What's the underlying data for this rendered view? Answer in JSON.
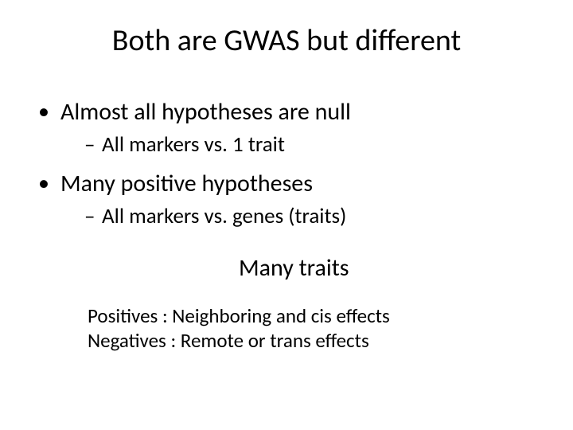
{
  "colors": {
    "background": "#ffffff",
    "text": "#000000"
  },
  "typography": {
    "font_family": "Calibri",
    "title_fontsize": 38,
    "bullet_l1_fontsize": 30,
    "bullet_l2_fontsize": 27,
    "center_note_fontsize": 30,
    "indent_line_fontsize": 25
  },
  "title": "Both are GWAS but different",
  "bullets": [
    {
      "l1": "Almost all hypotheses are null",
      "l2": "All markers vs. 1 trait"
    },
    {
      "l1": "Many positive hypotheses",
      "l2": "All markers vs. genes (traits)"
    }
  ],
  "center_note": "Many traits",
  "lines": {
    "positives": "Positives : Neighboring and cis effects",
    "negatives": "Negatives : Remote or trans effects"
  }
}
